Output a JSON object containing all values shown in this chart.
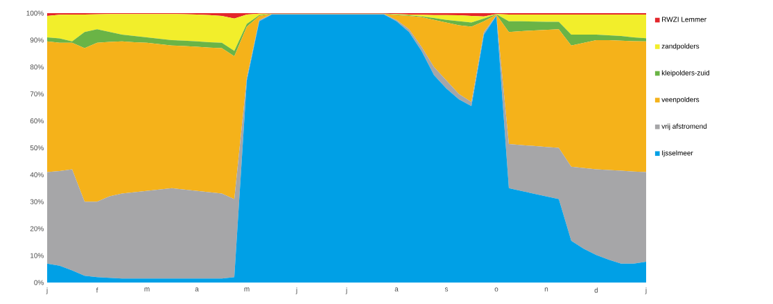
{
  "chart_data": {
    "type": "area",
    "stacked": true,
    "legend": "right",
    "categories": [
      "j",
      null,
      null,
      null,
      "f",
      null,
      null,
      null,
      "m",
      null,
      null,
      null,
      "a",
      null,
      null,
      null,
      "m",
      null,
      null,
      null,
      "j",
      null,
      null,
      null,
      "j",
      null,
      null,
      null,
      "a",
      null,
      null,
      null,
      "s",
      null,
      null,
      null,
      "o",
      null,
      null,
      null,
      "n",
      null,
      null,
      null,
      "d",
      null,
      null,
      null,
      "j"
    ],
    "ylim": [
      0,
      100
    ],
    "yticks": [
      {
        "value": 0,
        "label": "0%"
      },
      {
        "value": 10,
        "label": "10%"
      },
      {
        "value": 20,
        "label": "20%"
      },
      {
        "value": 30,
        "label": "30%"
      },
      {
        "value": 40,
        "label": "40%"
      },
      {
        "value": 50,
        "label": "50%"
      },
      {
        "value": 60,
        "label": "60%"
      },
      {
        "value": 70,
        "label": "70%"
      },
      {
        "value": 80,
        "label": "80%"
      },
      {
        "value": 90,
        "label": "90%"
      },
      {
        "value": 100,
        "label": "100%"
      }
    ],
    "series": [
      {
        "name": "Ijsselmeer",
        "color": "#00a0e6",
        "values": [
          7,
          6.2,
          4.5,
          2.5,
          2,
          1.7,
          1.5,
          1.5,
          1.5,
          1.5,
          1.5,
          1.5,
          1.5,
          1.5,
          1.5,
          2,
          75,
          97,
          99.5,
          99.5,
          99.5,
          99.5,
          99.5,
          99.5,
          99.5,
          99.5,
          99.5,
          99.5,
          97,
          93,
          86,
          77,
          72,
          68,
          65.5,
          92,
          99,
          35,
          34,
          33,
          32,
          31,
          15.5,
          12.5,
          10.2,
          8.5,
          7,
          7,
          7.7
        ]
      },
      {
        "name": "vrij afstromend",
        "color": "#a6a6a8",
        "values": [
          34,
          35.2,
          37.5,
          27.5,
          28,
          30.3,
          31.5,
          32,
          32.5,
          33,
          33.5,
          33,
          32.5,
          32,
          31.5,
          29,
          1,
          0.5,
          0.1,
          0.1,
          0.1,
          0.1,
          0.1,
          0.1,
          0.1,
          0.1,
          0.1,
          0.1,
          0.5,
          1,
          1.5,
          3,
          3,
          2,
          1.5,
          1,
          0.2,
          16.4,
          17,
          17.7,
          18.3,
          19,
          27.5,
          30,
          31.8,
          33.3,
          34.5,
          34.2,
          33.3
        ]
      },
      {
        "name": "veenpolders",
        "color": "#f5b21a",
        "values": [
          48.5,
          47.6,
          47,
          57,
          59,
          57.3,
          56.5,
          55.7,
          55,
          54,
          53,
          53.3,
          53.5,
          53.7,
          54,
          53,
          19,
          1.5,
          0.1,
          0.1,
          0.1,
          0.1,
          0.1,
          0.1,
          0.1,
          0.1,
          0.1,
          0.1,
          1.8,
          5,
          11,
          17.5,
          21.5,
          25.5,
          28,
          4,
          0.3,
          41.6,
          42.3,
          42.9,
          43.5,
          44,
          45,
          46.5,
          48,
          48.2,
          48.3,
          48.4,
          48.5
        ]
      },
      {
        "name": "kleipolders-zuid",
        "color": "#6ab446",
        "values": [
          1.5,
          1.6,
          0.5,
          6,
          5,
          3.7,
          2.5,
          2.3,
          2,
          2,
          2,
          2,
          2,
          2,
          2,
          2,
          1,
          0.3,
          0.1,
          0.1,
          0.1,
          0.1,
          0.1,
          0.1,
          0.1,
          0.1,
          0.1,
          0.1,
          0.2,
          0.2,
          0.3,
          0.7,
          1,
          1.5,
          1.5,
          1,
          0.1,
          4,
          3.7,
          3.3,
          3,
          2.8,
          4,
          3,
          2,
          1.8,
          1.7,
          1.4,
          1.2
        ]
      },
      {
        "name": "zandpolders",
        "color": "#f2ee2b",
        "values": [
          8,
          8.8,
          10,
          6.5,
          5.6,
          6.7,
          7.7,
          8.2,
          8.7,
          9.2,
          9.7,
          9.8,
          10,
          10.1,
          10,
          12,
          3.5,
          0.5,
          0,
          0,
          0,
          0,
          0,
          0,
          0,
          0,
          0,
          0,
          0.2,
          0.3,
          0.6,
          1.1,
          1.8,
          2.2,
          2.5,
          0.8,
          0.1,
          2.5,
          2.5,
          2.6,
          2.7,
          2.7,
          7.5,
          7.5,
          7.5,
          7.7,
          8,
          8.5,
          8.8
        ]
      },
      {
        "name": "RWZI Lemmer",
        "color": "#e3262b",
        "values": [
          1,
          0.6,
          0.5,
          0.5,
          0.4,
          0.3,
          0.3,
          0.3,
          0.3,
          0.3,
          0.3,
          0.4,
          0.5,
          0.7,
          1,
          2,
          0.5,
          0.2,
          0.2,
          0.2,
          0.2,
          0.2,
          0.2,
          0.2,
          0.2,
          0.2,
          0.2,
          0.2,
          0.3,
          0.5,
          0.6,
          0.7,
          0.7,
          0.8,
          1,
          1.2,
          0.3,
          0.5,
          0.5,
          0.5,
          0.5,
          0.5,
          0.5,
          0.5,
          0.5,
          0.5,
          0.5,
          0.5,
          0.5
        ]
      }
    ]
  }
}
